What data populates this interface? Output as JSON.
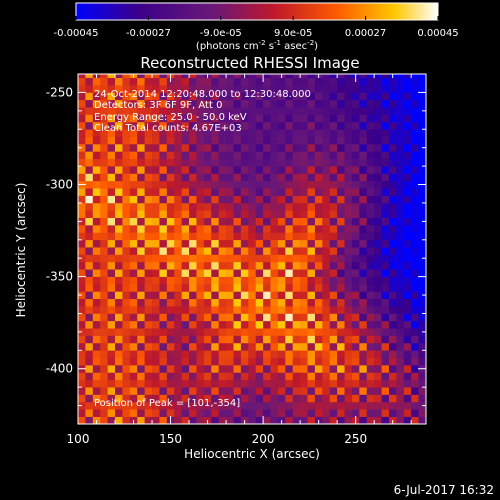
{
  "colorbar": {
    "ticks": [
      "-0.00045",
      "-0.00027",
      "-9.0e-05",
      "9.0e-05",
      "0.00027",
      "0.00045"
    ],
    "tick_values": [
      -0.00045,
      -0.00027,
      -9e-05,
      9e-05,
      0.00027,
      0.00045
    ],
    "range": [
      -0.00045,
      0.00045
    ],
    "units_main": "(photons cm",
    "units_exp1": "-2",
    "units_mid": " s",
    "units_exp2": "-1",
    "units_mid2": " asec",
    "units_exp3": "-2",
    "units_end": ")",
    "colors": [
      "#0000ff",
      "#3a008a",
      "#6a1878",
      "#c0192a",
      "#ff5a00",
      "#ffc800",
      "#ffffff"
    ]
  },
  "chart_data": {
    "type": "heatmap",
    "title": "Reconstructed RHESSI Image",
    "xlabel": "Heliocentric X (arcsec)",
    "ylabel": "Heliocentric Y (arcsec)",
    "xlim": [
      100,
      288
    ],
    "ylim": [
      -430,
      -240
    ],
    "xticks": [
      "100",
      "150",
      "200",
      "250"
    ],
    "xtick_values": [
      100,
      150,
      200,
      250
    ],
    "yticks": [
      "-250",
      "-300",
      "-350",
      "-400"
    ],
    "ytick_values": [
      -250,
      -300,
      -350,
      -400
    ],
    "grid": false,
    "annotations": {
      "time": "24-Oct-2014 12:20:48.000 to 12:30:48.000",
      "detectors": "Detectors: 3F 6F 9F, Att 0",
      "energy": "Energy Range: 25.0 - 50.0 keV",
      "clean": "Clean    Total counts: 4.67E+03",
      "peak": "Position of Peak = [101,-354]"
    },
    "peak_position": [
      101,
      -354
    ]
  },
  "footer": {
    "date": "6-Jul-2017 16:32"
  }
}
